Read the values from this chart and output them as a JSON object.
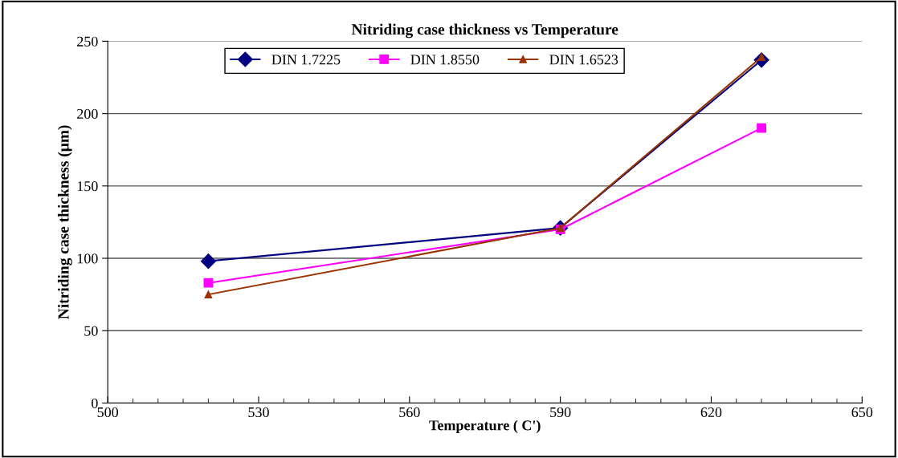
{
  "chart_data": {
    "type": "line",
    "title": "Nitriding case thickness vs Temperature",
    "xlabel": "Temperature ( C')",
    "ylabel": "Nitriding case thickness (μm)",
    "x": [
      520,
      590,
      630
    ],
    "series": [
      {
        "name": "DIN 1.7225",
        "color": "#000080",
        "marker": "diamond",
        "values": [
          98,
          121,
          237
        ]
      },
      {
        "name": "DIN 1.8550",
        "color": "#ff00ff",
        "marker": "square",
        "values": [
          83,
          120,
          190
        ]
      },
      {
        "name": "DIN 1.6523",
        "color": "#993300",
        "marker": "triangle",
        "values": [
          75,
          121,
          239
        ]
      }
    ],
    "xlim": [
      500,
      650
    ],
    "xticks": [
      500,
      530,
      560,
      590,
      620,
      650
    ],
    "ylim": [
      0,
      250
    ],
    "yticks": [
      0,
      50,
      100,
      150,
      200,
      250
    ],
    "grid": "y",
    "legend": "top",
    "line_style": "solid"
  }
}
